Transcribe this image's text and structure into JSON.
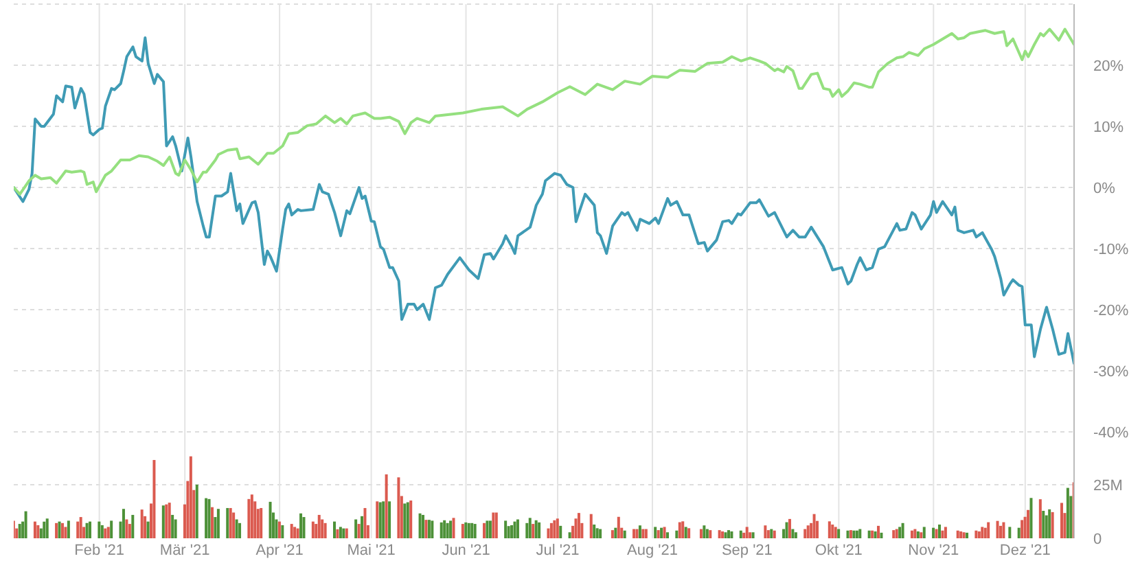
{
  "chart_data": {
    "type": "line",
    "grid": true,
    "xlim": [
      "2021-01-04",
      "2021-12-17"
    ],
    "xticks": [
      {
        "value": "2021-02-01",
        "label": "Feb '21"
      },
      {
        "value": "2021-03-01",
        "label": "Mär '21"
      },
      {
        "value": "2021-04-01",
        "label": "Apr '21"
      },
      {
        "value": "2021-05-01",
        "label": "Mai '21"
      },
      {
        "value": "2021-06-01",
        "label": "Jun '21"
      },
      {
        "value": "2021-07-01",
        "label": "Jul '21"
      },
      {
        "value": "2021-08-01",
        "label": "Aug '21"
      },
      {
        "value": "2021-09-01",
        "label": "Sep '21"
      },
      {
        "value": "2021-10-01",
        "label": "Okt '21"
      },
      {
        "value": "2021-11-01",
        "label": "Nov '21"
      },
      {
        "value": "2021-12-01",
        "label": "Dez '21"
      }
    ],
    "ylim": [
      -57.4,
      30
    ],
    "yticks": [
      {
        "value": 30,
        "label": null
      },
      {
        "value": 20,
        "label": "20%"
      },
      {
        "value": 10,
        "label": "10%"
      },
      {
        "value": 0,
        "label": "0%"
      },
      {
        "value": -10,
        "label": "-10%"
      },
      {
        "value": -20,
        "label": "-20%"
      },
      {
        "value": -30,
        "label": "-30%"
      },
      {
        "value": -40,
        "label": "-40%"
      }
    ],
    "y2lim": [
      0,
      249
    ],
    "y2ticks": [
      {
        "value": 0,
        "label": "0"
      },
      {
        "value": 25,
        "label": "25M"
      }
    ],
    "series": [
      {
        "color": "#3f9bb5",
        "x": [
          "2021-01-04",
          "2021-01-07",
          "2021-01-09",
          "2021-01-10",
          "2021-01-11",
          "2021-01-13",
          "2021-01-14",
          "2021-01-17",
          "2021-01-18",
          "2021-01-20",
          "2021-01-21",
          "2021-01-23",
          "2021-01-24",
          "2021-01-26",
          "2021-01-27",
          "2021-01-29",
          "2021-01-30",
          "2021-02-01",
          "2021-02-02",
          "2021-02-03",
          "2021-02-05",
          "2021-02-06",
          "2021-02-08",
          "2021-02-09",
          "2021-02-10",
          "2021-02-12",
          "2021-02-13",
          "2021-02-15",
          "2021-02-16",
          "2021-02-17",
          "2021-02-19",
          "2021-02-20",
          "2021-02-22",
          "2021-02-23",
          "2021-02-25",
          "2021-02-26",
          "2021-02-28",
          "2021-03-02",
          "2021-03-03",
          "2021-03-05",
          "2021-03-07",
          "2021-03-08",
          "2021-03-09",
          "2021-03-11",
          "2021-03-13",
          "2021-03-15",
          "2021-03-16",
          "2021-03-18",
          "2021-03-19",
          "2021-03-20",
          "2021-03-23",
          "2021-03-24",
          "2021-03-25",
          "2021-03-27",
          "2021-03-28",
          "2021-03-29",
          "2021-03-31",
          "2021-04-02",
          "2021-04-03",
          "2021-04-04",
          "2021-04-05",
          "2021-04-07",
          "2021-04-08",
          "2021-04-12",
          "2021-04-14",
          "2021-04-15",
          "2021-04-17",
          "2021-04-19",
          "2021-04-21",
          "2021-04-23",
          "2021-04-24",
          "2021-04-27",
          "2021-04-28",
          "2021-04-29",
          "2021-05-01",
          "2021-05-02",
          "2021-05-04",
          "2021-05-05",
          "2021-05-07",
          "2021-05-08",
          "2021-05-10",
          "2021-05-11",
          "2021-05-13",
          "2021-05-15",
          "2021-05-16",
          "2021-05-18",
          "2021-05-20",
          "2021-05-22",
          "2021-05-24",
          "2021-05-26",
          "2021-05-30",
          "2021-06-02",
          "2021-06-05",
          "2021-06-07",
          "2021-06-09",
          "2021-06-10",
          "2021-06-13",
          "2021-06-14",
          "2021-06-16",
          "2021-06-17",
          "2021-06-18",
          "2021-06-22",
          "2021-06-24",
          "2021-06-26",
          "2021-06-27",
          "2021-06-30",
          "2021-07-02",
          "2021-07-04",
          "2021-07-06",
          "2021-07-07",
          "2021-07-10",
          "2021-07-13",
          "2021-07-14",
          "2021-07-15",
          "2021-07-17",
          "2021-07-19",
          "2021-07-22",
          "2021-07-23",
          "2021-07-24",
          "2021-07-27",
          "2021-07-28",
          "2021-07-31",
          "2021-08-02",
          "2021-08-03",
          "2021-08-06",
          "2021-08-07",
          "2021-08-09",
          "2021-08-11",
          "2021-08-13",
          "2021-08-16",
          "2021-08-18",
          "2021-08-19",
          "2021-08-22",
          "2021-08-24",
          "2021-08-26",
          "2021-08-27",
          "2021-08-29",
          "2021-08-30",
          "2021-09-02",
          "2021-09-04",
          "2021-09-05",
          "2021-09-08",
          "2021-09-10",
          "2021-09-14",
          "2021-09-16",
          "2021-09-18",
          "2021-09-20",
          "2021-09-22",
          "2021-09-26",
          "2021-09-29",
          "2021-10-02",
          "2021-10-04",
          "2021-10-05",
          "2021-10-07",
          "2021-10-08",
          "2021-10-10",
          "2021-10-12",
          "2021-10-14",
          "2021-10-16",
          "2021-10-20",
          "2021-10-21",
          "2021-10-23",
          "2021-10-25",
          "2021-10-26",
          "2021-10-28",
          "2021-10-31",
          "2021-11-01",
          "2021-11-02",
          "2021-11-04",
          "2021-11-07",
          "2021-11-08",
          "2021-11-09",
          "2021-11-11",
          "2021-11-14",
          "2021-11-15",
          "2021-11-17",
          "2021-11-20",
          "2021-11-21",
          "2021-11-23",
          "2021-11-24",
          "2021-11-26",
          "2021-11-27",
          "2021-11-29",
          "2021-11-30",
          "2021-12-01",
          "2021-12-03",
          "2021-12-04",
          "2021-12-06",
          "2021-12-08",
          "2021-12-10",
          "2021-12-12",
          "2021-12-14",
          "2021-12-15",
          "2021-12-17"
        ],
        "values": [
          0,
          -2.3,
          -0.3,
          2.3,
          11.2,
          10,
          10,
          12,
          15,
          14,
          16.6,
          16.4,
          13,
          16.2,
          15.3,
          9,
          8.6,
          9.5,
          9.7,
          13.3,
          16.2,
          16,
          17,
          19.1,
          21.4,
          23,
          21.4,
          20.7,
          24.5,
          20.3,
          17,
          18.5,
          17.3,
          6.8,
          8.3,
          6.8,
          2.7,
          8.1,
          5,
          -2.3,
          -6.3,
          -8.1,
          -8.1,
          -1.4,
          -1.4,
          -0.7,
          2.3,
          -3.8,
          -2.7,
          -5.9,
          -2.5,
          -2.3,
          -4.1,
          -12.6,
          -10.4,
          -11.3,
          -13.7,
          -6.8,
          -3.6,
          -2.7,
          -4.5,
          -3.6,
          -3.8,
          -3.6,
          0.5,
          -0.7,
          -1.1,
          -4.1,
          -7.9,
          -3.8,
          -4.3,
          0,
          -1.8,
          -1.4,
          -5.5,
          -5.6,
          -9.7,
          -10.1,
          -13.1,
          -13.1,
          -15.3,
          -21.6,
          -19.1,
          -19.1,
          -20,
          -19.1,
          -21.6,
          -16.4,
          -16,
          -14.2,
          -11.5,
          -13.5,
          -14.9,
          -11,
          -10.8,
          -11.7,
          -9.2,
          -7.9,
          -9.7,
          -10.8,
          -7.9,
          -6.5,
          -2.9,
          -1.1,
          1.1,
          2.3,
          2,
          0.5,
          0,
          -5.6,
          -1.1,
          -2.9,
          -7.4,
          -7.9,
          -10.8,
          -6.3,
          -4.1,
          -4.5,
          -4.1,
          -7,
          -5.2,
          -5.9,
          -5,
          -5.9,
          -1.8,
          -2.9,
          -2.3,
          -4.5,
          -4.5,
          -9.2,
          -9,
          -10.4,
          -8.6,
          -5.6,
          -5.4,
          -5.9,
          -4.3,
          -4.5,
          -2.5,
          -2.5,
          -2,
          -4.7,
          -4.1,
          -8.1,
          -7,
          -8.1,
          -8.1,
          -6.5,
          -9.7,
          -13.5,
          -13.1,
          -15.8,
          -15.3,
          -12.6,
          -11.5,
          -13.5,
          -13.1,
          -10.1,
          -9.7,
          -5.9,
          -7,
          -6.8,
          -4.1,
          -4.5,
          -6.8,
          -4.5,
          -2.3,
          -4.1,
          -2.3,
          -4.5,
          -3.2,
          -7,
          -7.4,
          -7,
          -8.1,
          -7.4,
          -10.1,
          -11.3,
          -14.9,
          -17.6,
          -15.8,
          -15.1,
          -16,
          -16.2,
          -22.5,
          -22.5,
          -27.7,
          -23.2,
          -19.6,
          -23.2,
          -27.3,
          -27,
          -23.9,
          -28.8
        ]
      },
      {
        "color": "#95e07f",
        "x": [
          "2021-01-04",
          "2021-01-06",
          "2021-01-09",
          "2021-01-11",
          "2021-01-13",
          "2021-01-16",
          "2021-01-18",
          "2021-01-21",
          "2021-01-23",
          "2021-01-26",
          "2021-01-27",
          "2021-01-28",
          "2021-01-30",
          "2021-01-31",
          "2021-02-03",
          "2021-02-05",
          "2021-02-08",
          "2021-02-11",
          "2021-02-14",
          "2021-02-17",
          "2021-02-20",
          "2021-02-22",
          "2021-02-24",
          "2021-02-26",
          "2021-02-27",
          "2021-03-01",
          "2021-03-03",
          "2021-03-05",
          "2021-03-07",
          "2021-03-08",
          "2021-03-11",
          "2021-03-12",
          "2021-03-15",
          "2021-03-18",
          "2021-03-19",
          "2021-03-22",
          "2021-03-25",
          "2021-03-28",
          "2021-03-30",
          "2021-04-02",
          "2021-04-04",
          "2021-04-07",
          "2021-04-10",
          "2021-04-13",
          "2021-04-16",
          "2021-04-19",
          "2021-04-21",
          "2021-04-23",
          "2021-04-25",
          "2021-04-29",
          "2021-05-02",
          "2021-05-04",
          "2021-05-07",
          "2021-05-10",
          "2021-05-12",
          "2021-05-14",
          "2021-05-16",
          "2021-05-20",
          "2021-05-22",
          "2021-05-31",
          "2021-06-06",
          "2021-06-13",
          "2021-06-18",
          "2021-06-21",
          "2021-06-26",
          "2021-07-01",
          "2021-07-05",
          "2021-07-10",
          "2021-07-14",
          "2021-07-19",
          "2021-07-23",
          "2021-07-28",
          "2021-08-01",
          "2021-08-06",
          "2021-08-10",
          "2021-08-15",
          "2021-08-19",
          "2021-08-24",
          "2021-08-27",
          "2021-08-30",
          "2021-09-02",
          "2021-09-05",
          "2021-09-07",
          "2021-09-10",
          "2021-09-11",
          "2021-09-13",
          "2021-09-14",
          "2021-09-16",
          "2021-09-18",
          "2021-09-19",
          "2021-09-22",
          "2021-09-24",
          "2021-09-26",
          "2021-09-28",
          "2021-09-29",
          "2021-10-01",
          "2021-10-02",
          "2021-10-04",
          "2021-10-06",
          "2021-10-08",
          "2021-10-11",
          "2021-10-12",
          "2021-10-14",
          "2021-10-17",
          "2021-10-20",
          "2021-10-22",
          "2021-10-24",
          "2021-10-27",
          "2021-10-29",
          "2021-11-01",
          "2021-11-04",
          "2021-11-07",
          "2021-11-09",
          "2021-11-11",
          "2021-11-13",
          "2021-11-16",
          "2021-11-18",
          "2021-11-21",
          "2021-11-24",
          "2021-11-25",
          "2021-11-27",
          "2021-11-30",
          "2021-12-01",
          "2021-12-02",
          "2021-12-04",
          "2021-12-06",
          "2021-12-07",
          "2021-12-09",
          "2021-12-12",
          "2021-12-14",
          "2021-12-17"
        ],
        "values": [
          0,
          -1.1,
          1.1,
          2,
          1.4,
          1.6,
          0.7,
          2.7,
          2.5,
          2.7,
          2.5,
          0.5,
          0.9,
          -0.7,
          2,
          2.7,
          4.5,
          4.5,
          5.2,
          5,
          4.3,
          3.6,
          5,
          2.3,
          2,
          4.5,
          2.9,
          0.9,
          2.5,
          2.5,
          4.5,
          5.4,
          6.1,
          6.3,
          4.7,
          5,
          3.8,
          5.6,
          5.6,
          6.8,
          8.8,
          9,
          10.1,
          10.4,
          11.7,
          10.6,
          11.3,
          10.4,
          11.7,
          12.2,
          11.3,
          11.3,
          11.5,
          10.8,
          8.8,
          10.6,
          11.3,
          10.6,
          11.7,
          12.2,
          12.8,
          13.2,
          11.7,
          12.8,
          14,
          15.5,
          16.5,
          15.2,
          16.9,
          16,
          17.4,
          16.9,
          18.2,
          18,
          19.2,
          19,
          20.3,
          20.5,
          21.4,
          20.7,
          21.2,
          20.7,
          20.3,
          19.1,
          19.4,
          18.9,
          19.8,
          19.1,
          16.2,
          16.2,
          18.5,
          18.7,
          16.2,
          16,
          14.9,
          16,
          14.9,
          15.8,
          17.1,
          16.9,
          16.4,
          16.4,
          18.9,
          20.3,
          21.2,
          21.4,
          22.1,
          21.6,
          22.7,
          23.4,
          24.3,
          25.2,
          24.3,
          24.5,
          25.2,
          25.5,
          25.7,
          25.2,
          25.5,
          23.2,
          24.3,
          20.9,
          22.3,
          21.4,
          23.4,
          25.2,
          24.8,
          25.9,
          24.1,
          25.9,
          23.4
        ]
      },
      {
        "type": "bar",
        "axis": "y2",
        "x": [
          "2021-01-04",
          "2021-01-05",
          "2021-01-06",
          "2021-01-07",
          "2021-01-08",
          "2021-01-11",
          "2021-01-12",
          "2021-01-13",
          "2021-01-14",
          "2021-01-15",
          "2021-01-18",
          "2021-01-19",
          "2021-01-20",
          "2021-01-21",
          "2021-01-22",
          "2021-01-25",
          "2021-01-26",
          "2021-01-27",
          "2021-01-28",
          "2021-01-29",
          "2021-02-01",
          "2021-02-02",
          "2021-02-03",
          "2021-02-04",
          "2021-02-05",
          "2021-02-08",
          "2021-02-09",
          "2021-02-10",
          "2021-02-11",
          "2021-02-12",
          "2021-02-15",
          "2021-02-16",
          "2021-02-17",
          "2021-02-18",
          "2021-02-19",
          "2021-02-22",
          "2021-02-23",
          "2021-02-24",
          "2021-02-25",
          "2021-02-26",
          "2021-03-01",
          "2021-03-02",
          "2021-03-03",
          "2021-03-04",
          "2021-03-05",
          "2021-03-08",
          "2021-03-09",
          "2021-03-10",
          "2021-03-11",
          "2021-03-12",
          "2021-03-15",
          "2021-03-16",
          "2021-03-17",
          "2021-03-18",
          "2021-03-19",
          "2021-03-22",
          "2021-03-23",
          "2021-03-24",
          "2021-03-25",
          "2021-03-26",
          "2021-03-29",
          "2021-03-30",
          "2021-03-31",
          "2021-04-01",
          "2021-04-02",
          "2021-04-05",
          "2021-04-06",
          "2021-04-07",
          "2021-04-08",
          "2021-04-09",
          "2021-04-12",
          "2021-04-13",
          "2021-04-14",
          "2021-04-15",
          "2021-04-16",
          "2021-04-19",
          "2021-04-20",
          "2021-04-21",
          "2021-04-22",
          "2021-04-23",
          "2021-04-26",
          "2021-04-27",
          "2021-04-28",
          "2021-04-29",
          "2021-04-30",
          "2021-05-03",
          "2021-05-04",
          "2021-05-05",
          "2021-05-06",
          "2021-05-07",
          "2021-05-10",
          "2021-05-11",
          "2021-05-12",
          "2021-05-13",
          "2021-05-14",
          "2021-05-17",
          "2021-05-18",
          "2021-05-19",
          "2021-05-20",
          "2021-05-21",
          "2021-05-24",
          "2021-05-25",
          "2021-05-26",
          "2021-05-27",
          "2021-05-28",
          "2021-05-31",
          "2021-06-01",
          "2021-06-02",
          "2021-06-03",
          "2021-06-04",
          "2021-06-07",
          "2021-06-08",
          "2021-06-09",
          "2021-06-10",
          "2021-06-11",
          "2021-06-14",
          "2021-06-15",
          "2021-06-16",
          "2021-06-17",
          "2021-06-18",
          "2021-06-21",
          "2021-06-22",
          "2021-06-23",
          "2021-06-24",
          "2021-06-25",
          "2021-06-28",
          "2021-06-29",
          "2021-06-30",
          "2021-07-01",
          "2021-07-02",
          "2021-07-05",
          "2021-07-06",
          "2021-07-07",
          "2021-07-08",
          "2021-07-09",
          "2021-07-12",
          "2021-07-13",
          "2021-07-14",
          "2021-07-15",
          "2021-07-19",
          "2021-07-20",
          "2021-07-21",
          "2021-07-22",
          "2021-07-23",
          "2021-07-26",
          "2021-07-27",
          "2021-07-28",
          "2021-07-29",
          "2021-07-30",
          "2021-08-02",
          "2021-08-03",
          "2021-08-04",
          "2021-08-05",
          "2021-08-06",
          "2021-08-09",
          "2021-08-10",
          "2021-08-11",
          "2021-08-12",
          "2021-08-13",
          "2021-08-17",
          "2021-08-18",
          "2021-08-19",
          "2021-08-20",
          "2021-08-23",
          "2021-08-24",
          "2021-08-25",
          "2021-08-26",
          "2021-08-27",
          "2021-08-30",
          "2021-08-31",
          "2021-09-01",
          "2021-09-02",
          "2021-09-03",
          "2021-09-07",
          "2021-09-08",
          "2021-09-09",
          "2021-09-10",
          "2021-09-13",
          "2021-09-14",
          "2021-09-15",
          "2021-09-16",
          "2021-09-17",
          "2021-09-20",
          "2021-09-21",
          "2021-09-22",
          "2021-09-23",
          "2021-09-24",
          "2021-09-28",
          "2021-09-29",
          "2021-09-30",
          "2021-10-01",
          "2021-10-04",
          "2021-10-05",
          "2021-10-06",
          "2021-10-07",
          "2021-10-08",
          "2021-10-11",
          "2021-10-12",
          "2021-10-13",
          "2021-10-14",
          "2021-10-15",
          "2021-10-19",
          "2021-10-20",
          "2021-10-21",
          "2021-10-22",
          "2021-10-25",
          "2021-10-26",
          "2021-10-27",
          "2021-10-28",
          "2021-10-29",
          "2021-11-01",
          "2021-11-02",
          "2021-11-03",
          "2021-11-04",
          "2021-11-05",
          "2021-11-09",
          "2021-11-10",
          "2021-11-11",
          "2021-11-12",
          "2021-11-15",
          "2021-11-16",
          "2021-11-17",
          "2021-11-18",
          "2021-11-19",
          "2021-11-22",
          "2021-11-23",
          "2021-11-24",
          "2021-11-26",
          "2021-11-29",
          "2021-11-30",
          "2021-12-01",
          "2021-12-02",
          "2021-12-03",
          "2021-12-06",
          "2021-12-07",
          "2021-12-08",
          "2021-12-09",
          "2021-12-10",
          "2021-12-13",
          "2021-12-14",
          "2021-12-15",
          "2021-12-16",
          "2021-12-17"
        ],
        "values": [
          8.2,
          4.6,
          6.7,
          7.8,
          12.6,
          7.8,
          6.1,
          4.6,
          7.8,
          9.2,
          7.1,
          7.8,
          7.1,
          5.3,
          8.2,
          7.8,
          9.9,
          5.3,
          7.1,
          7.8,
          7.8,
          6.1,
          4.6,
          5.3,
          8.2,
          7.8,
          13.7,
          8.8,
          6.7,
          10.9,
          13.4,
          10.3,
          7.8,
          16.2,
          36.5,
          15.3,
          15.8,
          16.6,
          10.9,
          8.8,
          15.8,
          26.7,
          38.2,
          22.5,
          25,
          18.7,
          18.3,
          14.5,
          9.9,
          13.7,
          14.1,
          14.1,
          12,
          8.8,
          7.1,
          18.3,
          20.4,
          17.2,
          13.7,
          14.1,
          17,
          12,
          8.8,
          7.8,
          6.1,
          6.7,
          5.3,
          4.6,
          11.6,
          9.9,
          7.8,
          6.7,
          10.9,
          8.8,
          7.1,
          7.8,
          4.2,
          5.3,
          4.6,
          4.6,
          8.8,
          6.7,
          10.3,
          14.1,
          6.1,
          17.2,
          16.8,
          17.2,
          29.8,
          17.2,
          28.4,
          19.7,
          16.2,
          16.8,
          17.6,
          11.6,
          10.9,
          8.6,
          8.6,
          8.2,
          7.4,
          8.4,
          7.1,
          8.2,
          9.5,
          6.7,
          7.4,
          7.1,
          7.1,
          6.7,
          7.1,
          8.2,
          8.2,
          12,
          12,
          8.2,
          5.7,
          6.1,
          7.8,
          8.8,
          7.1,
          9.5,
          6.7,
          8.4,
          7.4,
          4.6,
          7.1,
          8.4,
          9.2,
          5.8,
          2.8,
          5.8,
          9.2,
          11.8,
          7.1,
          11.3,
          6.4,
          4.7,
          4.3,
          3.8,
          4.9,
          10,
          4.9,
          3.6,
          4.3,
          4.3,
          6,
          4.3,
          4.3,
          5.3,
          3.8,
          4.9,
          5.3,
          2.8,
          3.6,
          7.5,
          7.9,
          5.3,
          4.7,
          4.3,
          6,
          4.3,
          3.8,
          3.8,
          3.2,
          2.8,
          3.8,
          3.2,
          3.6,
          2.6,
          5.3,
          2.8,
          2.8,
          6,
          3.8,
          4.3,
          3.6,
          4.3,
          7.5,
          9,
          4.3,
          2.8,
          4.3,
          6,
          7.1,
          11.3,
          8.1,
          7.9,
          6.4,
          5.3,
          4.3,
          3.6,
          3.8,
          3.6,
          3.6,
          4.3,
          3.6,
          3.6,
          3.2,
          5.8,
          2.6,
          3.8,
          4.3,
          5.3,
          7.1,
          3.6,
          4.3,
          3.2,
          2.8,
          5.3,
          4.9,
          4.3,
          6.4,
          3.6,
          5.3,
          3.6,
          3.2,
          2.8,
          2.6,
          3.6,
          3.2,
          5.3,
          4.9,
          7.5,
          8.1,
          5.8,
          7.5,
          5.3,
          4.9,
          8.5,
          10,
          13.2,
          18.8,
          18.2,
          12.8,
          10.7,
          13.5,
          12.2,
          16.5,
          11.8,
          23.5,
          19.7,
          26.1
        ],
        "colors": [
          "#db5a4f",
          "#db5a4f",
          "#4d9138",
          "#4d9138",
          "#4d9138",
          "#db5a4f",
          "#db5a4f",
          "#4d9138",
          "#4d9138",
          "#4d9138",
          "#db5a4f",
          "#4d9138",
          "#db5a4f",
          "#db5a4f",
          "#4d9138",
          "#db5a4f",
          "#db5a4f",
          "#db5a4f",
          "#4d9138",
          "#4d9138",
          "#4d9138",
          "#4d9138",
          "#db5a4f",
          "#db5a4f",
          "#4d9138",
          "#4d9138",
          "#4d9138",
          "#db5a4f",
          "#db5a4f",
          "#4d9138",
          "#db5a4f",
          "#db5a4f",
          "#4d9138",
          "#db5a4f",
          "#db5a4f",
          "#4d9138",
          "#db5a4f",
          "#db5a4f",
          "#4d9138",
          "#4d9138",
          "#db5a4f",
          "#db5a4f",
          "#db5a4f",
          "#db5a4f",
          "#4d9138",
          "#4d9138",
          "#4d9138",
          "#db5a4f",
          "#4d9138",
          "#4d9138",
          "#4d9138",
          "#db5a4f",
          "#db5a4f",
          "#4d9138",
          "#4d9138",
          "#db5a4f",
          "#db5a4f",
          "#db5a4f",
          "#db5a4f",
          "#db5a4f",
          "#4d9138",
          "#4d9138",
          "#4d9138",
          "#db5a4f",
          "#4d9138",
          "#db5a4f",
          "#db5a4f",
          "#db5a4f",
          "#4d9138",
          "#4d9138",
          "#db5a4f",
          "#db5a4f",
          "#db5a4f",
          "#db5a4f",
          "#db5a4f",
          "#4d9138",
          "#db5a4f",
          "#4d9138",
          "#4d9138",
          "#db5a4f",
          "#4d9138",
          "#db5a4f",
          "#4d9138",
          "#db5a4f",
          "#db5a4f",
          "#db5a4f",
          "#4d9138",
          "#4d9138",
          "#db5a4f",
          "#4d9138",
          "#db5a4f",
          "#db5a4f",
          "#4d9138",
          "#4d9138",
          "#db5a4f",
          "#4d9138",
          "#4d9138",
          "#db5a4f",
          "#4d9138",
          "#4d9138",
          "#4d9138",
          "#4d9138",
          "#4d9138",
          "#4d9138",
          "#db5a4f",
          "#db5a4f",
          "#4d9138",
          "#4d9138",
          "#4d9138",
          "#4d9138",
          "#db5a4f",
          "#4d9138",
          "#4d9138",
          "#db5a4f",
          "#db5a4f",
          "#4d9138",
          "#4d9138",
          "#4d9138",
          "#4d9138",
          "#4d9138",
          "#4d9138",
          "#4d9138",
          "#db5a4f",
          "#4d9138",
          "#4d9138",
          "#db5a4f",
          "#db5a4f",
          "#db5a4f",
          "#db5a4f",
          "#4d9138",
          "#4d9138",
          "#db5a4f",
          "#db5a4f",
          "#db5a4f",
          "#db5a4f",
          "#db5a4f",
          "#4d9138",
          "#4d9138",
          "#4d9138",
          "#db5a4f",
          "#4d9138",
          "#db5a4f",
          "#db5a4f",
          "#4d9138",
          "#db5a4f",
          "#db5a4f",
          "#4d9138",
          "#db5a4f",
          "#db5a4f",
          "#4d9138",
          "#db5a4f",
          "#4d9138",
          "#db5a4f",
          "#4d9138",
          "#4d9138",
          "#db5a4f",
          "#db5a4f",
          "#4d9138",
          "#db5a4f",
          "#db5a4f",
          "#4d9138",
          "#4d9138",
          "#db5a4f",
          "#db5a4f",
          "#db5a4f",
          "#4d9138",
          "#4d9138",
          "#4d9138",
          "#4d9138",
          "#db5a4f",
          "#db5a4f",
          "#db5a4f",
          "#4d9138",
          "#db5a4f",
          "#db5a4f",
          "#4d9138",
          "#db5a4f",
          "#4d9138",
          "#4d9138",
          "#db5a4f",
          "#4d9138",
          "#4d9138",
          "#db5a4f",
          "#db5a4f",
          "#db5a4f",
          "#db5a4f",
          "#db5a4f",
          "#db5a4f",
          "#db5a4f",
          "#db5a4f",
          "#4d9138",
          "#4d9138",
          "#db5a4f",
          "#4d9138",
          "#4d9138",
          "#4d9138",
          "#4d9138",
          "#db5a4f",
          "#4d9138",
          "#db5a4f",
          "#4d9138",
          "#db5a4f",
          "#db5a4f",
          "#4d9138",
          "#4d9138",
          "#db5a4f",
          "#db5a4f",
          "#4d9138",
          "#db5a4f",
          "#4d9138",
          "#4d9138",
          "#db5a4f",
          "#4d9138",
          "#db5a4f",
          "#db5a4f",
          "#db5a4f",
          "#db5a4f",
          "#db5a4f",
          "#4d9138",
          "#db5a4f",
          "#db5a4f",
          "#db5a4f",
          "#db5a4f",
          "#db5a4f",
          "#db5a4f",
          "#db5a4f",
          "#db5a4f",
          "#4d9138",
          "#4d9138",
          "#db5a4f",
          "#db5a4f",
          "#db5a4f",
          "#4d9138",
          "#db5a4f",
          "#4d9138",
          "#4d9138",
          "#4d9138",
          "#db5a4f",
          "#db5a4f",
          "#db5a4f",
          "#4d9138",
          "#4d9138",
          "#db5a4f"
        ]
      }
    ]
  }
}
